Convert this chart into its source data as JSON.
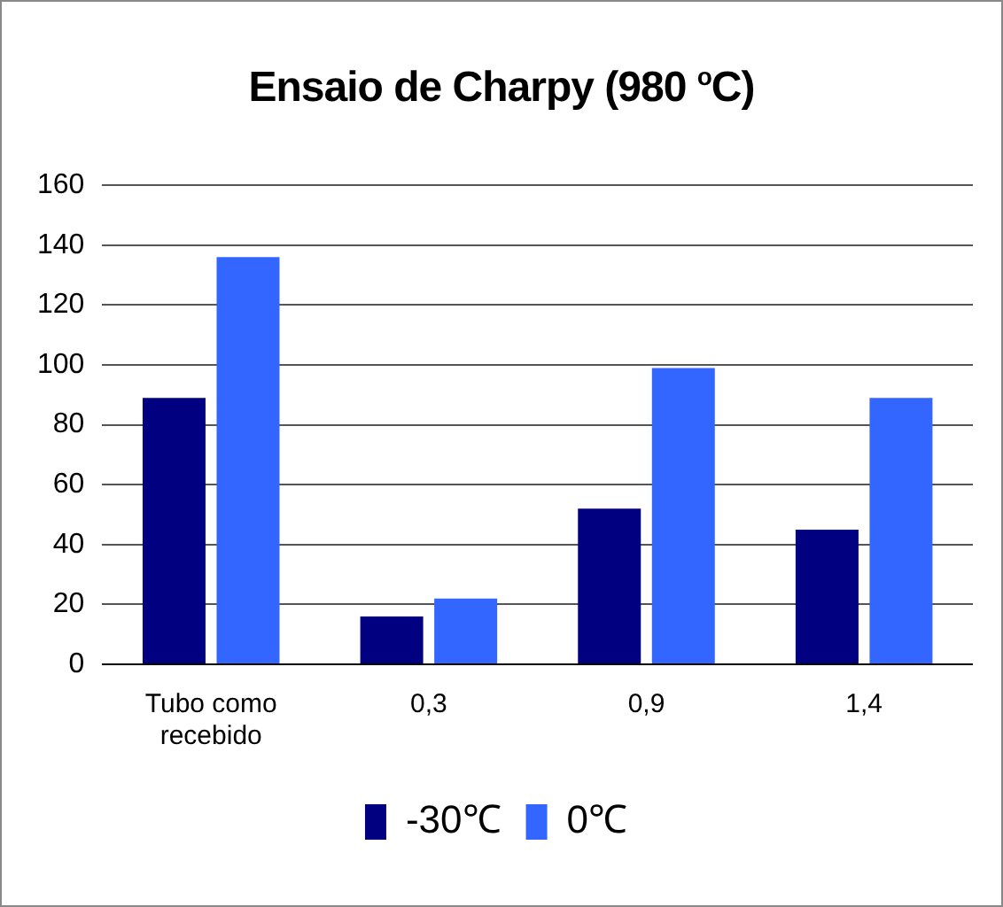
{
  "chart_data": {
    "type": "bar",
    "title": "Ensaio de Charpy (980 $^{o}$C)",
    "categories": [
      "Tubo como recebido",
      "0,3",
      "0,9",
      "1,4"
    ],
    "series": [
      {
        "name": "-30℃",
        "color": "#000080",
        "values": [
          89,
          16,
          52,
          45
        ]
      },
      {
        "name": "0℃",
        "color": "#3366ff",
        "values": [
          136,
          22,
          99,
          89
        ]
      }
    ],
    "ylim": [
      0,
      160
    ],
    "yticks": [
      0,
      20,
      40,
      60,
      80,
      100,
      120,
      140,
      160
    ],
    "grid": "y",
    "legend": "bottom"
  }
}
